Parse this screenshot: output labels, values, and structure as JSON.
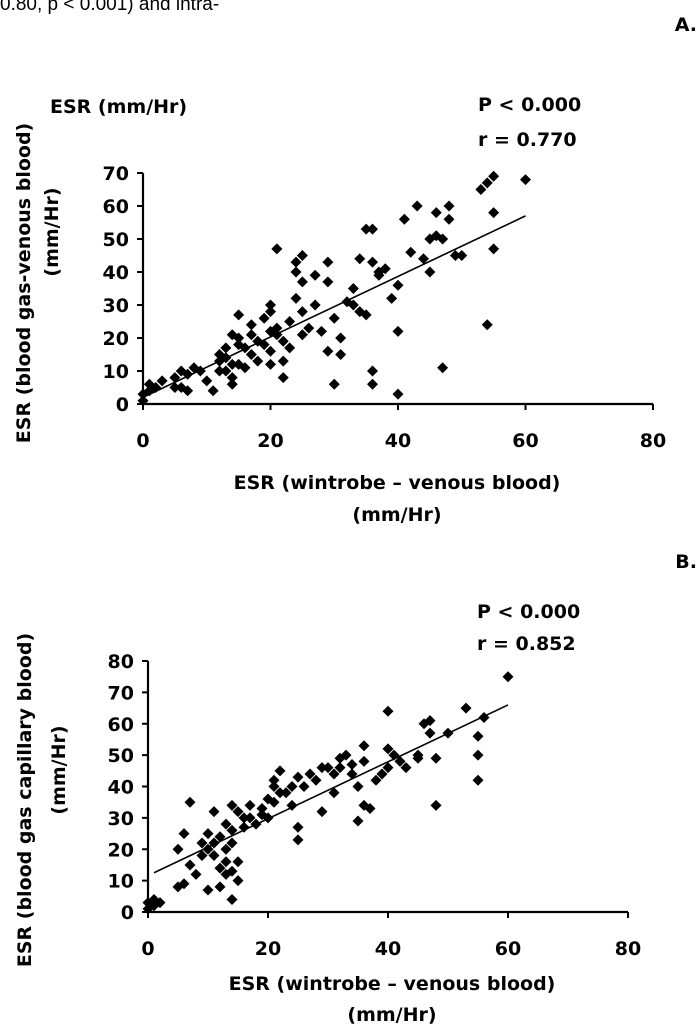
{
  "page": {
    "top_text": "0.80, p < 0.001) and intra-"
  },
  "chart_data": [
    {
      "panel_label": "A.",
      "type": "scatter",
      "corner_label": "ESR (mm/Hr)",
      "ylabel_line1": "ESR (blood gas-venous blood)",
      "ylabel_line2": "(mm/Hr)",
      "xlabel_line1": "ESR (wintrobe – venous blood)",
      "xlabel_line2": "(mm/Hr)",
      "stat_p": "P < 0.000",
      "stat_r": "r = 0.770",
      "xlim": [
        0,
        80
      ],
      "ylim": [
        0,
        70
      ],
      "xticks": [
        0,
        20,
        40,
        60,
        80
      ],
      "yticks": [
        0,
        10,
        20,
        30,
        40,
        50,
        60,
        70
      ],
      "trendline": {
        "x": [
          0,
          60
        ],
        "y": [
          2,
          57
        ]
      },
      "points": [
        [
          0,
          1
        ],
        [
          0,
          3
        ],
        [
          1,
          4
        ],
        [
          1,
          6
        ],
        [
          2,
          5
        ],
        [
          3,
          7
        ],
        [
          5,
          5
        ],
        [
          5,
          8
        ],
        [
          6,
          10
        ],
        [
          6,
          5
        ],
        [
          7,
          9
        ],
        [
          7,
          4
        ],
        [
          8,
          11
        ],
        [
          9,
          10
        ],
        [
          10,
          7
        ],
        [
          11,
          4
        ],
        [
          12,
          15
        ],
        [
          12,
          10
        ],
        [
          12,
          13
        ],
        [
          13,
          17
        ],
        [
          13,
          14
        ],
        [
          13,
          10
        ],
        [
          14,
          21
        ],
        [
          14,
          12
        ],
        [
          14,
          8
        ],
        [
          14,
          6
        ],
        [
          15,
          27
        ],
        [
          15,
          20
        ],
        [
          15,
          18
        ],
        [
          15,
          12
        ],
        [
          16,
          11
        ],
        [
          16,
          17
        ],
        [
          17,
          24
        ],
        [
          17,
          21
        ],
        [
          17,
          15
        ],
        [
          18,
          19
        ],
        [
          18,
          13
        ],
        [
          19,
          18
        ],
        [
          19,
          26
        ],
        [
          20,
          30
        ],
        [
          20,
          28
        ],
        [
          20,
          22
        ],
        [
          20,
          16
        ],
        [
          20,
          12
        ],
        [
          21,
          47
        ],
        [
          21,
          23
        ],
        [
          21,
          21
        ],
        [
          22,
          13
        ],
        [
          22,
          8
        ],
        [
          22,
          19
        ],
        [
          23,
          25
        ],
        [
          23,
          17
        ],
        [
          24,
          43
        ],
        [
          24,
          40
        ],
        [
          24,
          32
        ],
        [
          25,
          45
        ],
        [
          25,
          37
        ],
        [
          25,
          28
        ],
        [
          25,
          21
        ],
        [
          26,
          23
        ],
        [
          27,
          30
        ],
        [
          27,
          39
        ],
        [
          28,
          22
        ],
        [
          29,
          43
        ],
        [
          29,
          37
        ],
        [
          29,
          16
        ],
        [
          30,
          6
        ],
        [
          30,
          26
        ],
        [
          31,
          20
        ],
        [
          31,
          15
        ],
        [
          32,
          31
        ],
        [
          33,
          30
        ],
        [
          33,
          35
        ],
        [
          34,
          44
        ],
        [
          34,
          28
        ],
        [
          35,
          53
        ],
        [
          35,
          27
        ],
        [
          36,
          53
        ],
        [
          36,
          43
        ],
        [
          36,
          10
        ],
        [
          36,
          6
        ],
        [
          37,
          39
        ],
        [
          37,
          40
        ],
        [
          38,
          41
        ],
        [
          39,
          32
        ],
        [
          40,
          36
        ],
        [
          40,
          22
        ],
        [
          40,
          3
        ],
        [
          41,
          56
        ],
        [
          42,
          46
        ],
        [
          43,
          60
        ],
        [
          44,
          44
        ],
        [
          45,
          40
        ],
        [
          45,
          50
        ],
        [
          46,
          58
        ],
        [
          46,
          51
        ],
        [
          47,
          50
        ],
        [
          47,
          11
        ],
        [
          48,
          56
        ],
        [
          48,
          60
        ],
        [
          49,
          45
        ],
        [
          50,
          45
        ],
        [
          53,
          65
        ],
        [
          54,
          67
        ],
        [
          54,
          24
        ],
        [
          55,
          69
        ],
        [
          55,
          58
        ],
        [
          55,
          47
        ],
        [
          60,
          68
        ]
      ]
    },
    {
      "panel_label": "B.",
      "type": "scatter",
      "corner_label": "",
      "ylabel_line1": "ESR (blood gas capillary blood)",
      "ylabel_line2": "(mm/Hr)",
      "xlabel_line1": "ESR (wintrobe – venous blood)",
      "xlabel_line2": "(mm/Hr)",
      "stat_p": "P < 0.000",
      "stat_r": "r = 0.852",
      "xlim": [
        0,
        80
      ],
      "ylim": [
        0,
        80
      ],
      "xticks": [
        0,
        20,
        40,
        60,
        80
      ],
      "yticks": [
        0,
        10,
        20,
        30,
        40,
        50,
        60,
        70,
        80
      ],
      "trendline": {
        "x": [
          1,
          60
        ],
        "y": [
          12.5,
          66
        ]
      },
      "points": [
        [
          0,
          1
        ],
        [
          0,
          3
        ],
        [
          1,
          2
        ],
        [
          1,
          4
        ],
        [
          2,
          3
        ],
        [
          5,
          8
        ],
        [
          5,
          20
        ],
        [
          6,
          25
        ],
        [
          6,
          9
        ],
        [
          7,
          35
        ],
        [
          7,
          15
        ],
        [
          8,
          12
        ],
        [
          9,
          18
        ],
        [
          9,
          22
        ],
        [
          10,
          25
        ],
        [
          10,
          20
        ],
        [
          10,
          7
        ],
        [
          11,
          32
        ],
        [
          11,
          22
        ],
        [
          11,
          18
        ],
        [
          12,
          24
        ],
        [
          12,
          14
        ],
        [
          12,
          8
        ],
        [
          13,
          20
        ],
        [
          13,
          16
        ],
        [
          13,
          12
        ],
        [
          13,
          28
        ],
        [
          14,
          34
        ],
        [
          14,
          26
        ],
        [
          14,
          22
        ],
        [
          14,
          13
        ],
        [
          14,
          4
        ],
        [
          15,
          32
        ],
        [
          15,
          16
        ],
        [
          15,
          10
        ],
        [
          16,
          30
        ],
        [
          16,
          27
        ],
        [
          17,
          34
        ],
        [
          17,
          30
        ],
        [
          18,
          28
        ],
        [
          19,
          33
        ],
        [
          19,
          31
        ],
        [
          20,
          36
        ],
        [
          20,
          30
        ],
        [
          21,
          40
        ],
        [
          21,
          42
        ],
        [
          21,
          35
        ],
        [
          22,
          45
        ],
        [
          22,
          38
        ],
        [
          23,
          38
        ],
        [
          24,
          40
        ],
        [
          24,
          34
        ],
        [
          25,
          43
        ],
        [
          25,
          27
        ],
        [
          25,
          23
        ],
        [
          26,
          40
        ],
        [
          27,
          44
        ],
        [
          28,
          42
        ],
        [
          29,
          46
        ],
        [
          29,
          32
        ],
        [
          30,
          46
        ],
        [
          31,
          44
        ],
        [
          31,
          38
        ],
        [
          32,
          49
        ],
        [
          32,
          46
        ],
        [
          33,
          50
        ],
        [
          34,
          47
        ],
        [
          34,
          44
        ],
        [
          35,
          40
        ],
        [
          35,
          29
        ],
        [
          36,
          53
        ],
        [
          36,
          48
        ],
        [
          36,
          34
        ],
        [
          37,
          33
        ],
        [
          38,
          42
        ],
        [
          39,
          44
        ],
        [
          40,
          52
        ],
        [
          40,
          64
        ],
        [
          40,
          46
        ],
        [
          41,
          50
        ],
        [
          42,
          48
        ],
        [
          43,
          46
        ],
        [
          45,
          50
        ],
        [
          45,
          49
        ],
        [
          46,
          60
        ],
        [
          47,
          61
        ],
        [
          47,
          57
        ],
        [
          48,
          49
        ],
        [
          48,
          34
        ],
        [
          50,
          57
        ],
        [
          53,
          65
        ],
        [
          55,
          56
        ],
        [
          55,
          50
        ],
        [
          55,
          42
        ],
        [
          56,
          62
        ],
        [
          60,
          75
        ]
      ]
    }
  ]
}
